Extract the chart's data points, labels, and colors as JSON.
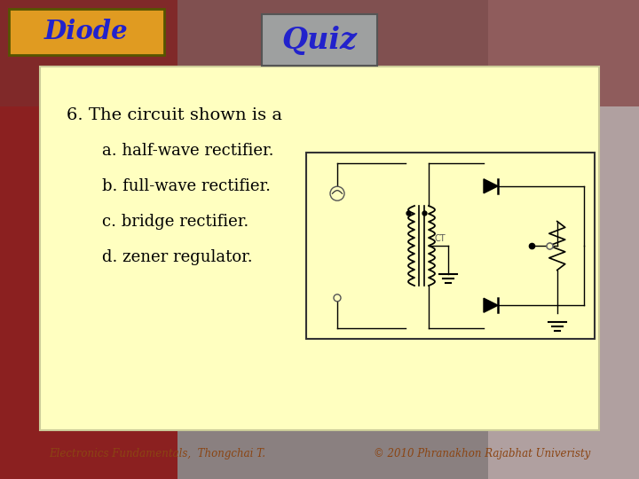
{
  "title": "Quiz",
  "header": "Diode",
  "question": "6. The circuit shown is a",
  "answers": [
    "a. half-wave rectifier.",
    "b. full-wave rectifier.",
    "c. bridge rectifier.",
    "d. zener regulator."
  ],
  "footer_left": "Electronics Fundamentals,  Thongchai T.",
  "footer_right": "© 2010 Phranakhon Rajabhat Univeristy",
  "bg_color": "#FFFFC0",
  "header_box_color_left": "#D4860A",
  "header_box_color_right": "#F5C842",
  "quiz_box_color": "#9ea0a0",
  "title_color": "#2222cc",
  "header_text_color": "#2222cc",
  "question_color": "#000000",
  "answer_color": "#000000",
  "footer_color": "#8B4513",
  "circuit_bg": "#FFFFC0",
  "circuit_border": "#333333"
}
